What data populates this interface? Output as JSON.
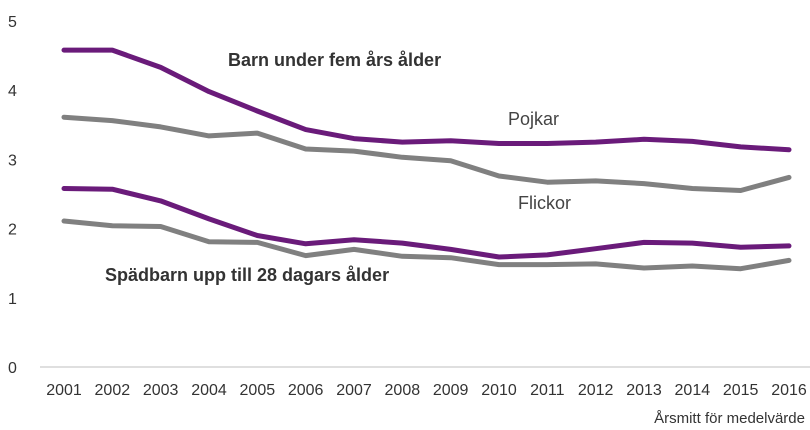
{
  "chart_data": {
    "type": "line",
    "title": "",
    "xlabel": "Årsmitt för medelvärde",
    "ylabel": "",
    "x": [
      "2001",
      "2002",
      "2003",
      "2004",
      "2005",
      "2006",
      "2007",
      "2008",
      "2009",
      "2010",
      "2011",
      "2012",
      "2013",
      "2014",
      "2015",
      "2016"
    ],
    "ylim": [
      0,
      5
    ],
    "yticks": [
      "0",
      "1",
      "2",
      "3",
      "4",
      "5"
    ],
    "grid": "none",
    "legend": "none",
    "series": [
      {
        "values": [
          4.58,
          4.58,
          4.33,
          3.98,
          3.7,
          3.43,
          3.3,
          3.25,
          3.27,
          3.23,
          3.23,
          3.25,
          3.29,
          3.26,
          3.18,
          3.14
        ],
        "color": "#6a1b7a"
      },
      {
        "values": [
          3.61,
          3.56,
          3.47,
          3.34,
          3.38,
          3.15,
          3.12,
          3.03,
          2.98,
          2.76,
          2.67,
          2.69,
          2.65,
          2.58,
          2.55,
          2.74
        ],
        "color": "#808080"
      },
      {
        "values": [
          2.58,
          2.57,
          2.4,
          2.14,
          1.9,
          1.78,
          1.84,
          1.79,
          1.7,
          1.59,
          1.62,
          1.71,
          1.8,
          1.79,
          1.73,
          1.75
        ],
        "color": "#6a1b7a"
      },
      {
        "values": [
          2.11,
          2.04,
          2.03,
          1.81,
          1.8,
          1.61,
          1.7,
          1.6,
          1.58,
          1.48,
          1.48,
          1.49,
          1.43,
          1.46,
          1.42,
          1.54
        ],
        "color": "#808080"
      }
    ],
    "annotations": {
      "under_five": "Barn under fem års ålder",
      "boys": "Pojkar",
      "girls": "Flickor",
      "infants": "Spädbarn upp till 28 dagars ålder"
    }
  }
}
